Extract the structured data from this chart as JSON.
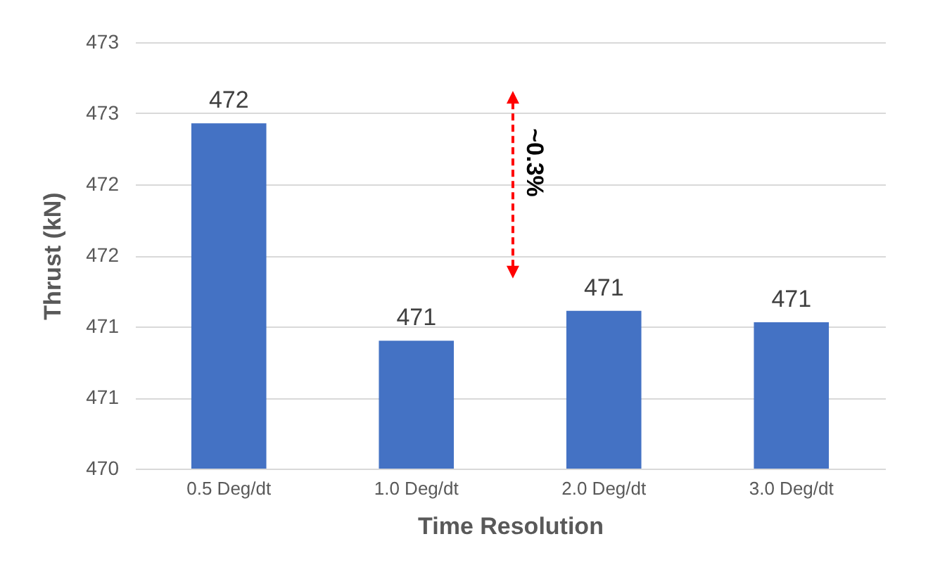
{
  "chart_data": {
    "type": "bar",
    "categories": [
      "0.5 Deg/dt",
      "1.0 Deg/dt",
      "2.0 Deg/dt",
      "3.0 Deg/dt"
    ],
    "values": [
      472.43,
      470.9,
      471.11,
      471.03
    ],
    "value_labels": [
      "472",
      "471",
      "471",
      "471"
    ],
    "color": "#4472c4",
    "xlabel": "Time Resolution",
    "ylabel": "Thrust (kN)",
    "ylim": [
      470,
      473
    ],
    "yticks": [
      470,
      {
        "value": 470.5,
        "label": "471"
      },
      471,
      {
        "value": 471.5,
        "label": "472"
      },
      472,
      {
        "value": 472.5,
        "label": "473"
      },
      473
    ],
    "grid": "y",
    "annotations": [
      "~0.3%"
    ]
  }
}
